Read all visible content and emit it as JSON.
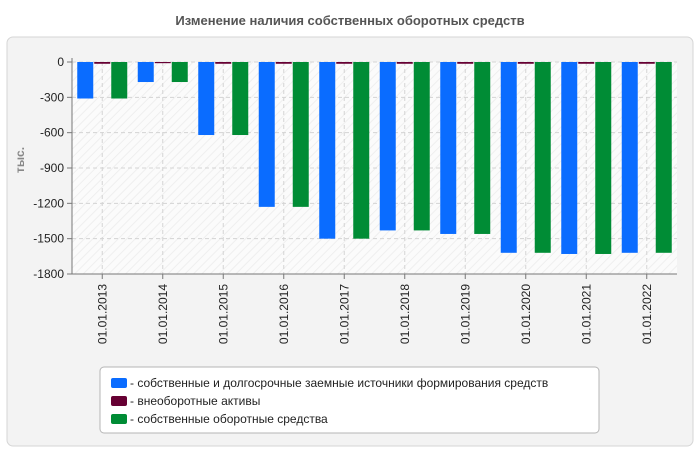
{
  "chart_data": {
    "type": "bar",
    "title": "Изменение наличия собственных оборотных средств",
    "ylabel": "тыс.",
    "xlabel": "",
    "ylim": [
      -1800,
      0
    ],
    "yticks": [
      0,
      -300,
      -600,
      -900,
      -1200,
      -1500,
      -1800
    ],
    "ytick_labels": [
      "0",
      "-300",
      "-600",
      "-900",
      "-1200",
      "-1500",
      "-1800"
    ],
    "grid": true,
    "legend_position": "bottom",
    "categories": [
      "01.01.2013",
      "01.01.2014",
      "01.01.2015",
      "01.01.2016",
      "01.01.2017",
      "01.01.2018",
      "01.01.2019",
      "01.01.2020",
      "01.01.2021",
      "01.01.2022"
    ],
    "series": [
      {
        "name": "собственные и долгосрочные заемные источники формирования средств",
        "color": "#0a6cff",
        "values": [
          -310,
          -170,
          -620,
          -1230,
          -1500,
          -1430,
          -1460,
          -1620,
          -1630,
          -1620
        ]
      },
      {
        "name": "внеоборотные активы",
        "color": "#660033",
        "values": [
          -15,
          -10,
          -15,
          -15,
          -15,
          -15,
          -15,
          -15,
          -15,
          -15
        ]
      },
      {
        "name": "собственные оборотные средства",
        "color": "#008c35",
        "values": [
          -310,
          -170,
          -620,
          -1230,
          -1500,
          -1430,
          -1460,
          -1620,
          -1630,
          -1620
        ]
      }
    ]
  }
}
